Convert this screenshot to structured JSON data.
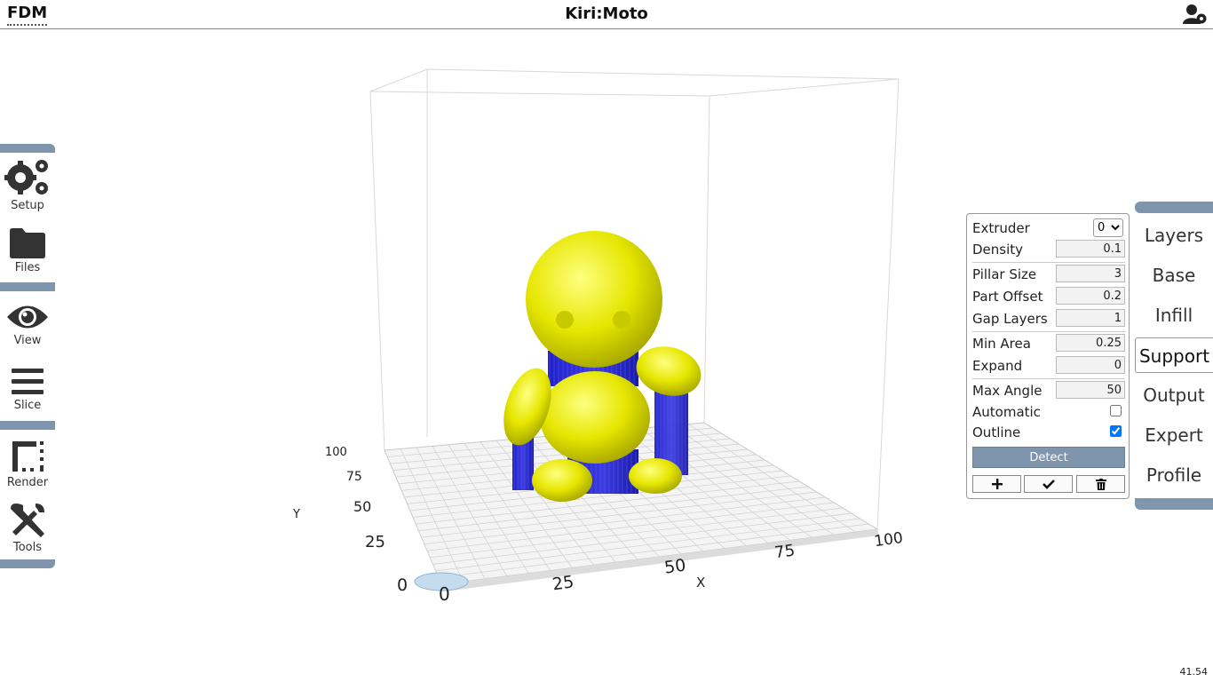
{
  "header": {
    "mode": "FDM",
    "title": "Kiri:Moto"
  },
  "left_menu": [
    {
      "label": "Setup",
      "icon": "gears-icon"
    },
    {
      "label": "Files",
      "icon": "folder-icon"
    },
    {
      "label": "View",
      "icon": "eye-icon"
    },
    {
      "label": "Slice",
      "icon": "bars-icon"
    },
    {
      "label": "Render",
      "icon": "render-icon"
    },
    {
      "label": "Tools",
      "icon": "tools-icon"
    }
  ],
  "support_panel": {
    "extruder": {
      "label": "Extruder",
      "value": "0"
    },
    "density": {
      "label": "Density",
      "value": "0.1"
    },
    "pillar_size": {
      "label": "Pillar Size",
      "value": "3"
    },
    "part_offset": {
      "label": "Part Offset",
      "value": "0.2"
    },
    "gap_layers": {
      "label": "Gap Layers",
      "value": "1"
    },
    "min_area": {
      "label": "Min Area",
      "value": "0.25"
    },
    "expand": {
      "label": "Expand",
      "value": "0"
    },
    "max_angle": {
      "label": "Max Angle",
      "value": "50"
    },
    "automatic": {
      "label": "Automatic",
      "checked": false
    },
    "outline": {
      "label": "Outline",
      "checked": true
    },
    "detect_label": "Detect"
  },
  "right_tabs": [
    {
      "label": "Layers",
      "active": false
    },
    {
      "label": "Base",
      "active": false
    },
    {
      "label": "Infill",
      "active": false
    },
    {
      "label": "Support",
      "active": true
    },
    {
      "label": "Output",
      "active": false
    },
    {
      "label": "Expert",
      "active": false
    },
    {
      "label": "Profile",
      "active": false
    }
  ],
  "axes": {
    "x_label": "X",
    "y_label": "Y",
    "x_ticks": [
      "0",
      "25",
      "50",
      "75",
      "100"
    ],
    "y_ticks": [
      "0",
      "25",
      "50",
      "75",
      "100"
    ]
  },
  "colors": {
    "accent": "#7f94ad",
    "model": "#e6e600",
    "support": "#1a1acc"
  },
  "status": {
    "fps": "41.54"
  }
}
